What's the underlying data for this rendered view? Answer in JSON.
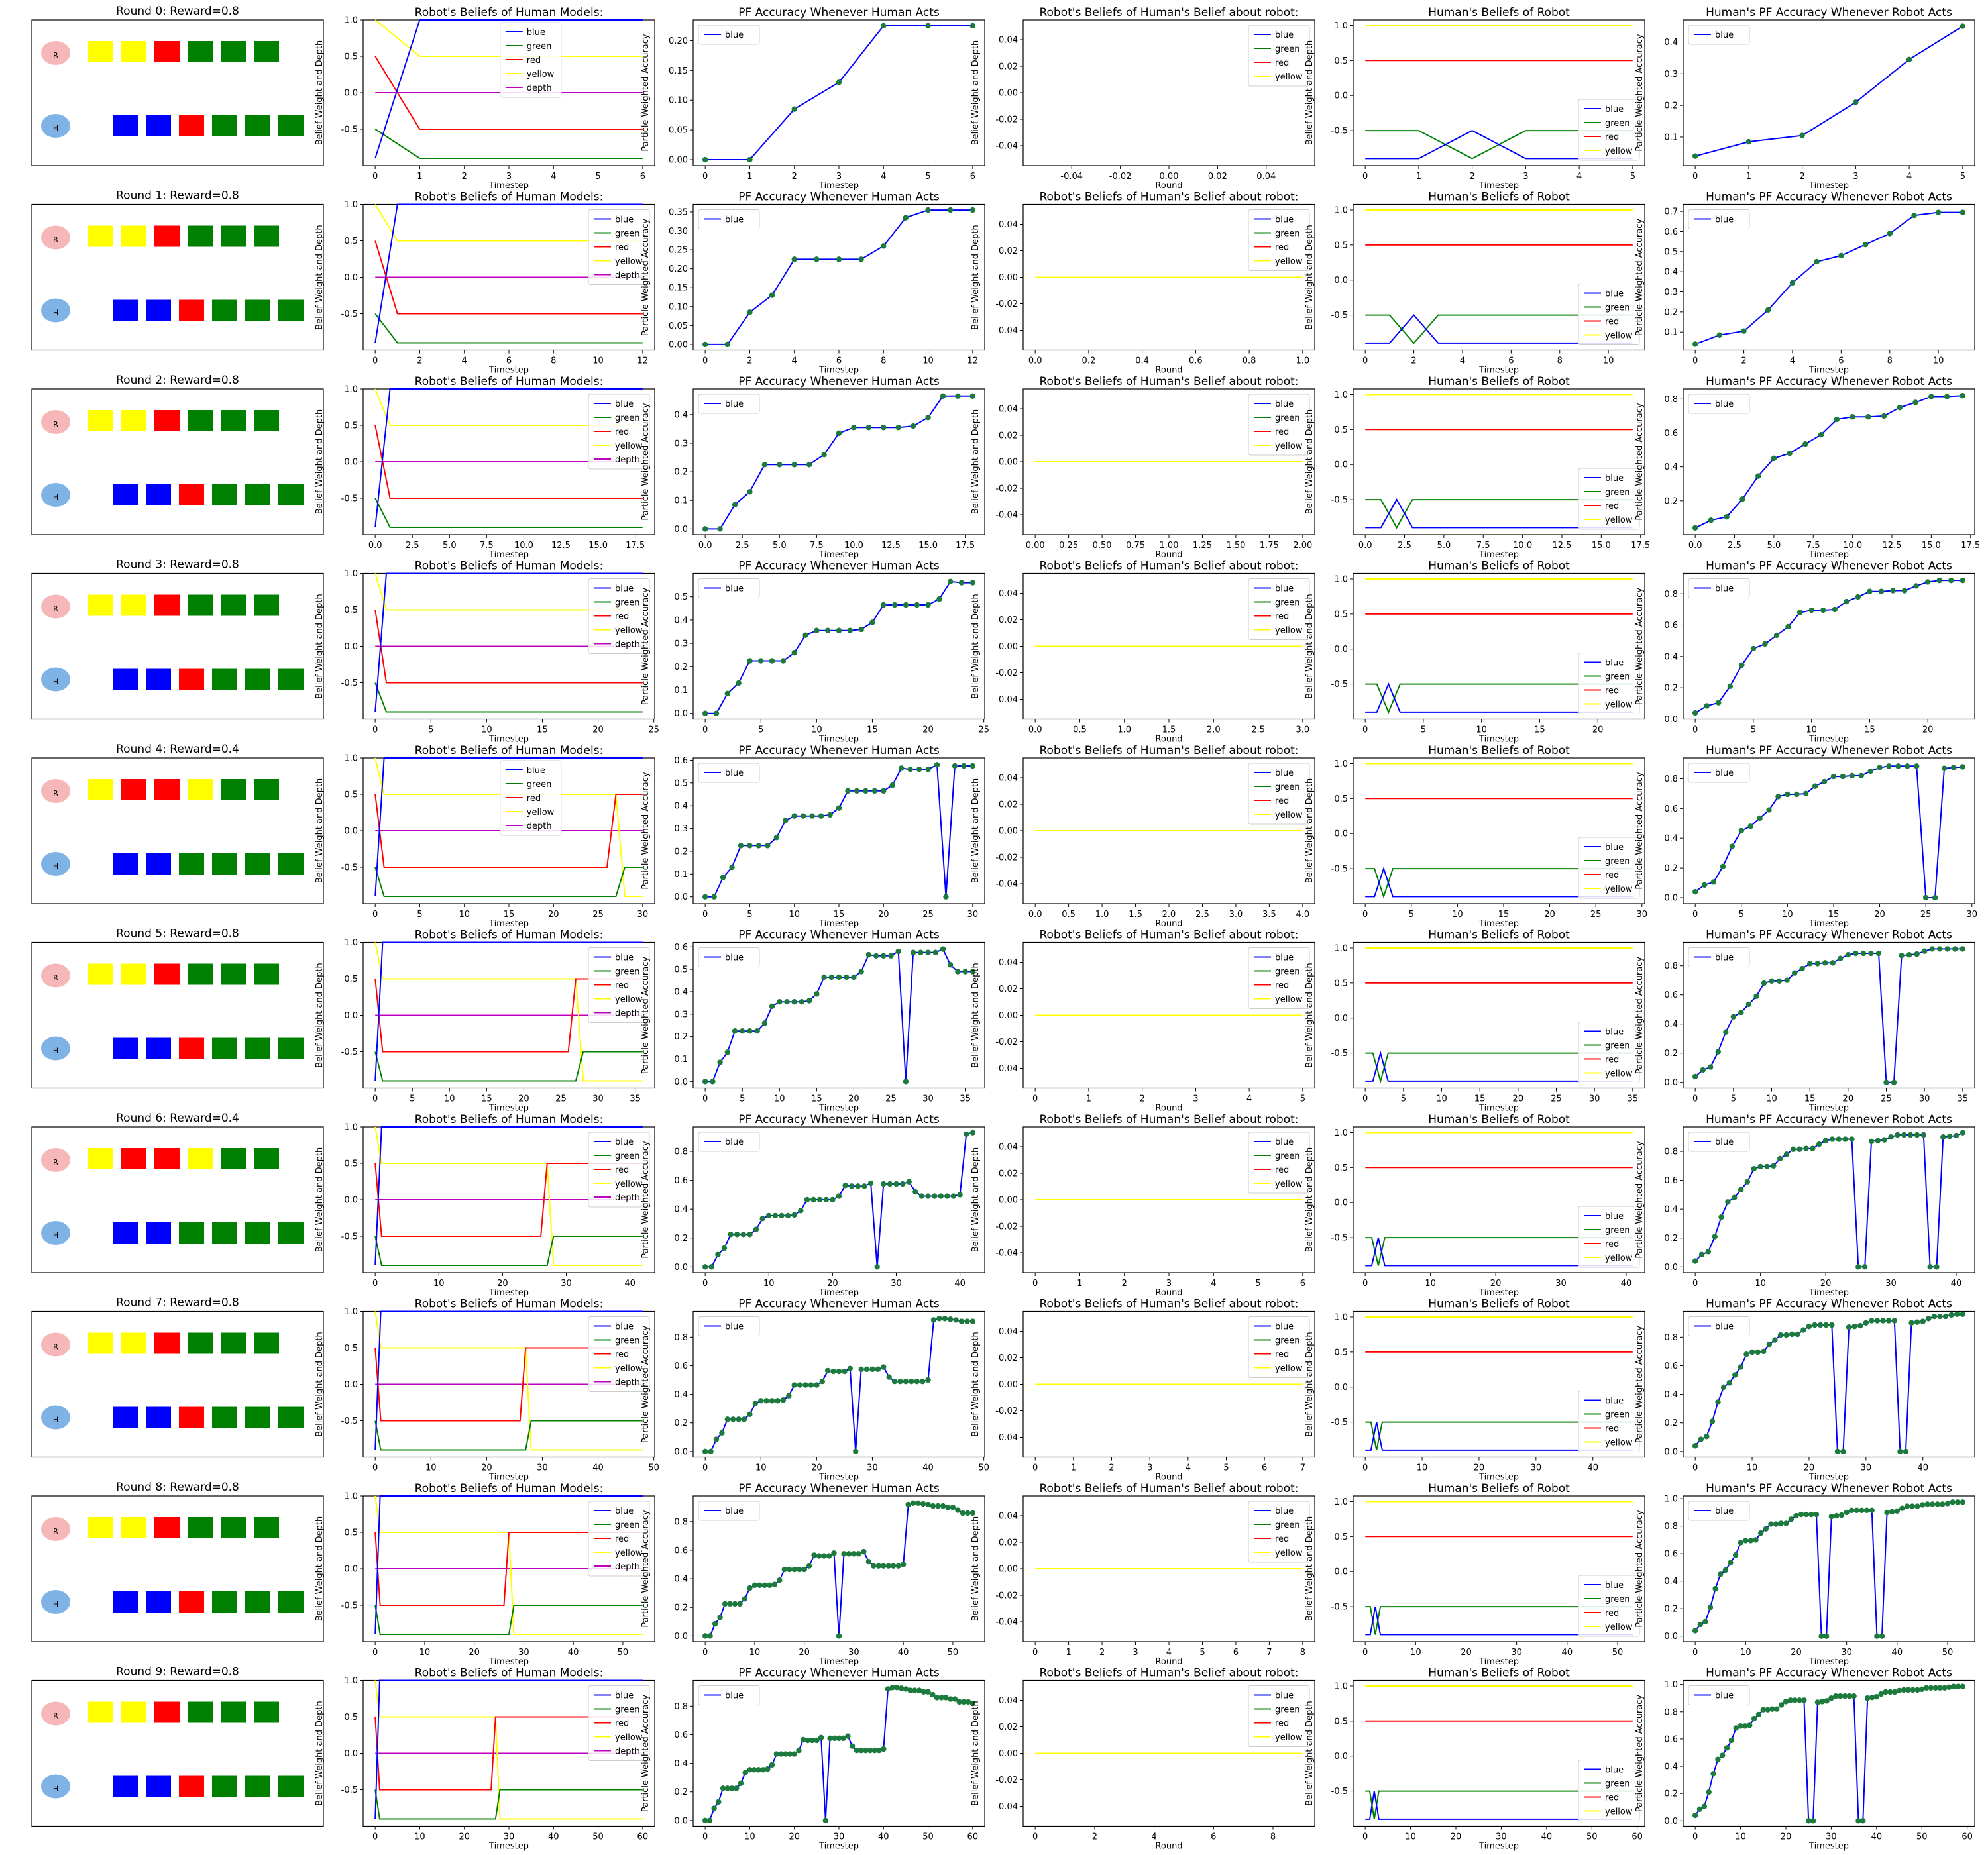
{
  "figure": {
    "type": "grid_of_subplots",
    "rows": 10,
    "columns": 6,
    "column_titles": [
      "Round N: Reward=…",
      "Robot's Beliefs of Human Models:",
      "PF Accuracy Whenever Human Acts",
      "Robot's Beliefs of Human's Belief about robot:",
      "Human's Beliefs of Robot",
      "Human's PF Accuracy Whenever Robot Acts"
    ]
  },
  "colors": {
    "blue": "#0000ff",
    "green": "#008000",
    "red": "#ff0000",
    "yellow": "#ffff00",
    "depth": "#bf00bf",
    "robot_agent": "#f5b7b7",
    "human_agent": "#7fb2e5",
    "marker": "#1b7a3c",
    "axis": "#000000"
  },
  "chart_data": [
    {
      "type": "panel_grid",
      "row_titles": [
        "Round 0: Reward=0.8",
        "Round 1: Reward=0.8",
        "Round 2: Reward=0.8",
        "Round 3: Reward=0.8",
        "Round 4: Reward=0.4",
        "Round 5: Reward=0.8",
        "Round 6: Reward=0.4",
        "Round 7: Reward=0.8",
        "Round 8: Reward=0.8",
        "Round 9: Reward=0.8"
      ],
      "agent_labels": {
        "robot": "R",
        "human": "H"
      },
      "robot_blocks": [
        [
          "yellow",
          "yellow",
          "red",
          "green",
          "green",
          "green"
        ],
        [
          "yellow",
          "yellow",
          "red",
          "green",
          "green",
          "green"
        ],
        [
          "yellow",
          "yellow",
          "red",
          "green",
          "green",
          "green"
        ],
        [
          "yellow",
          "yellow",
          "red",
          "green",
          "green",
          "green"
        ],
        [
          "yellow",
          "red",
          "red",
          "yellow",
          "green",
          "green"
        ],
        [
          "yellow",
          "yellow",
          "red",
          "green",
          "green",
          "green"
        ],
        [
          "yellow",
          "red",
          "red",
          "yellow",
          "green",
          "green"
        ],
        [
          "yellow",
          "yellow",
          "red",
          "green",
          "green",
          "green"
        ],
        [
          "yellow",
          "yellow",
          "red",
          "green",
          "green",
          "green"
        ],
        [
          "yellow",
          "yellow",
          "red",
          "green",
          "green",
          "green"
        ]
      ],
      "human_blocks": [
        [
          "blue",
          "blue",
          "red",
          "green",
          "green",
          "green"
        ],
        [
          "blue",
          "blue",
          "red",
          "green",
          "green",
          "green"
        ],
        [
          "blue",
          "blue",
          "red",
          "green",
          "green",
          "green"
        ],
        [
          "blue",
          "blue",
          "red",
          "green",
          "green",
          "green"
        ],
        [
          "blue",
          "blue",
          "green",
          "green",
          "green",
          "green"
        ],
        [
          "blue",
          "blue",
          "red",
          "green",
          "green",
          "green"
        ],
        [
          "blue",
          "blue",
          "green",
          "green",
          "green",
          "green"
        ],
        [
          "blue",
          "blue",
          "red",
          "green",
          "green",
          "green"
        ],
        [
          "blue",
          "blue",
          "red",
          "green",
          "green",
          "green"
        ],
        [
          "blue",
          "blue",
          "red",
          "green",
          "green",
          "green"
        ]
      ]
    },
    {
      "type": "line",
      "title": "Robot's Beliefs of Human Models:",
      "xlabel": "Timestep",
      "ylabel": "Belief Weight and Depth",
      "ylim": [
        -1.0,
        1.0
      ],
      "yticks": [
        "-0.5",
        "0.0",
        "0.5",
        "1.0"
      ],
      "legend": [
        "blue",
        "green",
        "red",
        "yellow",
        "depth"
      ],
      "xlims": [
        [
          0,
          6
        ],
        [
          0,
          12
        ],
        [
          0,
          18
        ],
        [
          0,
          24
        ],
        [
          0,
          30
        ],
        [
          0,
          36
        ],
        [
          0,
          42
        ],
        [
          0,
          48
        ],
        [
          0,
          54
        ],
        [
          0,
          60
        ]
      ],
      "xticks": [
        [
          "0",
          "1",
          "2",
          "3",
          "4",
          "5",
          "6"
        ],
        [
          "0",
          "2",
          "4",
          "6",
          "8",
          "10",
          "12"
        ],
        [
          "0.0",
          "2.5",
          "5.0",
          "7.5",
          "10.0",
          "12.5",
          "15.0",
          "17.5"
        ],
        [
          "0",
          "5",
          "10",
          "15",
          "20",
          "25"
        ],
        [
          "0",
          "5",
          "10",
          "15",
          "20",
          "25",
          "30"
        ],
        [
          "0",
          "5",
          "10",
          "15",
          "20",
          "25",
          "30",
          "35"
        ],
        [
          "0",
          "10",
          "20",
          "30",
          "40"
        ],
        [
          "0",
          "10",
          "20",
          "30",
          "40",
          "50"
        ],
        [
          "0",
          "10",
          "20",
          "30",
          "40",
          "50"
        ],
        [
          "0",
          "10",
          "20",
          "30",
          "40",
          "50",
          "60"
        ]
      ],
      "red_switch_x": [
        null,
        null,
        null,
        null,
        27,
        27,
        27,
        27,
        27,
        27
      ],
      "series_per_round": {
        "blue": "-0.9 at x=0, 1.0 from x=1 to end",
        "green": "-0.5 at x=0, -0.9 from x=1; rises to -0.5 at x=28 in rounds 4-9",
        "red": "0.5 at x=0, -0.5 from x=1; rises to 0.5 at x=27 in rounds 4-9",
        "yellow": "1.0 at x=0, 0.5 from x=1; falls to -0.9 at x=28 in rounds 4-9",
        "depth": "0.0 constant"
      }
    },
    {
      "type": "line",
      "title": "PF Accuracy Whenever Human Acts",
      "xlabel": "Timestep",
      "ylabel": "Particle Weighted Accuracy",
      "legend": [
        "blue"
      ],
      "values": [
        0.0,
        0.0,
        0.085,
        0.13,
        0.225,
        0.225,
        0.225,
        0.225,
        0.26,
        0.335,
        0.355,
        0.355,
        0.355,
        0.355,
        0.36,
        0.39,
        0.465,
        0.465,
        0.465,
        0.465,
        0.465,
        0.49,
        0.565,
        0.56,
        0.56,
        0.56,
        0.58,
        0.0,
        0.575,
        0.575,
        0.575,
        0.575,
        0.59,
        0.52,
        0.49,
        0.49,
        0.49,
        0.49,
        0.49,
        0.49,
        0.5,
        0.92,
        0.93,
        0.93,
        0.925,
        0.92,
        0.91,
        0.91,
        0.91,
        0.9,
        0.9,
        0.88,
        0.86,
        0.86,
        0.86,
        0.85,
        0.85,
        0.83,
        0.83,
        0.83,
        0.82
      ],
      "row_lengths": [
        7,
        13,
        19,
        25,
        31,
        37,
        43,
        49,
        55,
        61
      ],
      "ylims": [
        [
          -0.01,
          0.235
        ],
        [
          -0.015,
          0.37
        ],
        [
          -0.02,
          0.49
        ],
        [
          -0.025,
          0.6
        ],
        [
          -0.03,
          0.61
        ],
        [
          -0.03,
          0.62
        ],
        [
          -0.04,
          0.97
        ],
        [
          -0.04,
          0.98
        ],
        [
          -0.04,
          0.98
        ],
        [
          -0.04,
          0.98
        ]
      ],
      "yticks": [
        [
          "0.00",
          "0.05",
          "0.10",
          "0.15",
          "0.20"
        ],
        [
          "0.00",
          "0.05",
          "0.10",
          "0.15",
          "0.20",
          "0.25",
          "0.30",
          "0.35"
        ],
        [
          "0.0",
          "0.1",
          "0.2",
          "0.3",
          "0.4"
        ],
        [
          "0.0",
          "0.1",
          "0.2",
          "0.3",
          "0.4",
          "0.5"
        ],
        [
          "0.0",
          "0.1",
          "0.2",
          "0.3",
          "0.4",
          "0.5",
          "0.6"
        ],
        [
          "0.0",
          "0.1",
          "0.2",
          "0.3",
          "0.4",
          "0.5",
          "0.6"
        ],
        [
          "0.0",
          "0.2",
          "0.4",
          "0.6",
          "0.8"
        ],
        [
          "0.0",
          "0.2",
          "0.4",
          "0.6",
          "0.8"
        ],
        [
          "0.0",
          "0.2",
          "0.4",
          "0.6",
          "0.8"
        ],
        [
          "0.0",
          "0.2",
          "0.4",
          "0.6",
          "0.8"
        ]
      ]
    },
    {
      "type": "line",
      "title": "Robot's Beliefs of Human's Belief about robot:",
      "xlabel": "Round",
      "ylabel": "Belief Weight and Depth",
      "legend": [
        "blue",
        "green",
        "red",
        "yellow"
      ],
      "ylim": [
        -0.055,
        0.055
      ],
      "yticks": [
        "-0.04",
        "-0.02",
        "0.00",
        "0.02",
        "0.04"
      ],
      "xlims": [
        [
          -0.055,
          0.055
        ],
        [
          0,
          1
        ],
        [
          0,
          2
        ],
        [
          0,
          3
        ],
        [
          0,
          4
        ],
        [
          0,
          5
        ],
        [
          0,
          6
        ],
        [
          0,
          7
        ],
        [
          0,
          8
        ],
        [
          0,
          9
        ]
      ],
      "xticks": [
        [
          "-0.04",
          "-0.02",
          "0.00",
          "0.02",
          "0.04"
        ],
        [
          "0.0",
          "0.2",
          "0.4",
          "0.6",
          "0.8",
          "1.0"
        ],
        [
          "0.00",
          "0.25",
          "0.50",
          "0.75",
          "1.00",
          "1.25",
          "1.50",
          "1.75",
          "2.00"
        ],
        [
          "0.0",
          "0.5",
          "1.0",
          "1.5",
          "2.0",
          "2.5",
          "3.0"
        ],
        [
          "0.0",
          "0.5",
          "1.0",
          "1.5",
          "2.0",
          "2.5",
          "3.0",
          "3.5",
          "4.0"
        ],
        [
          "0",
          "1",
          "2",
          "3",
          "4",
          "5"
        ],
        [
          "0",
          "1",
          "2",
          "3",
          "4",
          "5",
          "6"
        ],
        [
          "0",
          "1",
          "2",
          "3",
          "4",
          "5",
          "6",
          "7"
        ],
        [
          "0",
          "1",
          "2",
          "3",
          "4",
          "5",
          "6",
          "7",
          "8"
        ],
        [
          "0",
          "2",
          "4",
          "6",
          "8"
        ]
      ],
      "yellow_value": 0.0
    },
    {
      "type": "line",
      "title": "Human's Beliefs of Robot",
      "xlabel": "Timestep",
      "ylabel": "Belief Weight and Depth",
      "legend": [
        "blue",
        "green",
        "red",
        "yellow"
      ],
      "ylim": [
        -1.0,
        1.08
      ],
      "yticks": [
        "-0.5",
        "0.0",
        "0.5",
        "1.0"
      ],
      "xlims": [
        [
          0,
          5
        ],
        [
          0,
          11
        ],
        [
          0,
          17
        ],
        [
          0,
          23
        ],
        [
          0,
          29
        ],
        [
          0,
          35
        ],
        [
          0,
          41
        ],
        [
          0,
          47
        ],
        [
          0,
          53
        ],
        [
          0,
          59
        ]
      ],
      "xticks": [
        [
          "0",
          "1",
          "2",
          "3",
          "4",
          "5"
        ],
        [
          "0",
          "2",
          "4",
          "6",
          "8",
          "10"
        ],
        [
          "0.0",
          "2.5",
          "5.0",
          "7.5",
          "10.0",
          "12.5",
          "15.0",
          "17.5"
        ],
        [
          "0",
          "5",
          "10",
          "15",
          "20"
        ],
        [
          "0",
          "5",
          "10",
          "15",
          "20",
          "25",
          "30"
        ],
        [
          "0",
          "5",
          "10",
          "15",
          "20",
          "25",
          "30",
          "35"
        ],
        [
          "0",
          "10",
          "20",
          "30",
          "40"
        ],
        [
          "0",
          "10",
          "20",
          "30",
          "40"
        ],
        [
          "0",
          "10",
          "20",
          "30",
          "40",
          "50"
        ],
        [
          "0",
          "10",
          "20",
          "30",
          "40",
          "50",
          "60"
        ]
      ],
      "series": {
        "blue": [
          -0.9,
          -0.9,
          -0.5,
          -0.9
        ],
        "green": [
          -0.5,
          -0.5,
          -0.9,
          -0.5
        ],
        "red": 0.5,
        "yellow": 1.0
      }
    },
    {
      "type": "line",
      "title": "Human's PF Accuracy Whenever Robot Acts",
      "xlabel": "Timestep",
      "ylabel": "Particle Weighted Accuracy",
      "legend": [
        "blue"
      ],
      "values": [
        0.04,
        0.085,
        0.105,
        0.21,
        0.345,
        0.45,
        0.48,
        0.535,
        0.59,
        0.68,
        0.695,
        0.695,
        0.7,
        0.75,
        0.78,
        0.815,
        0.815,
        0.82,
        0.82,
        0.85,
        0.875,
        0.885,
        0.885,
        0.885,
        0.885,
        0.0,
        0.0,
        0.87,
        0.875,
        0.88,
        0.9,
        0.915,
        0.915,
        0.915,
        0.915,
        0.915,
        0.0,
        0.0,
        0.9,
        0.905,
        0.91,
        0.93,
        0.945,
        0.945,
        0.945,
        0.955,
        0.96,
        0.96,
        0.96,
        0.96,
        0.965,
        0.975,
        0.975,
        0.975,
        0.975,
        0.975,
        0.98,
        0.985,
        0.985,
        0.985
      ],
      "row_lengths": [
        6,
        12,
        18,
        24,
        30,
        36,
        42,
        48,
        54,
        60
      ],
      "ylims": [
        [
          0.01,
          0.47
        ],
        [
          0.01,
          0.735
        ],
        [
          0.0,
          0.86
        ],
        [
          0.0,
          0.93
        ],
        [
          -0.04,
          0.94
        ],
        [
          -0.04,
          0.96
        ],
        [
          -0.04,
          0.97
        ],
        [
          -0.04,
          0.98
        ],
        [
          -0.04,
          1.02
        ],
        [
          -0.04,
          1.03
        ]
      ],
      "yticks": [
        [
          "0.1",
          "0.2",
          "0.3",
          "0.4"
        ],
        [
          "0.1",
          "0.2",
          "0.3",
          "0.4",
          "0.5",
          "0.6",
          "0.7"
        ],
        [
          "0.2",
          "0.4",
          "0.6",
          "0.8"
        ],
        [
          "0.0",
          "0.2",
          "0.4",
          "0.6",
          "0.8"
        ],
        [
          "0.0",
          "0.2",
          "0.4",
          "0.6",
          "0.8"
        ],
        [
          "0.0",
          "0.2",
          "0.4",
          "0.6",
          "0.8"
        ],
        [
          "0.0",
          "0.2",
          "0.4",
          "0.6",
          "0.8"
        ],
        [
          "0.0",
          "0.2",
          "0.4",
          "0.6",
          "0.8"
        ],
        [
          "0.0",
          "0.2",
          "0.4",
          "0.6",
          "0.8",
          "1.0"
        ],
        [
          "0.0",
          "0.2",
          "0.4",
          "0.6",
          "0.8",
          "1.0"
        ]
      ]
    }
  ]
}
